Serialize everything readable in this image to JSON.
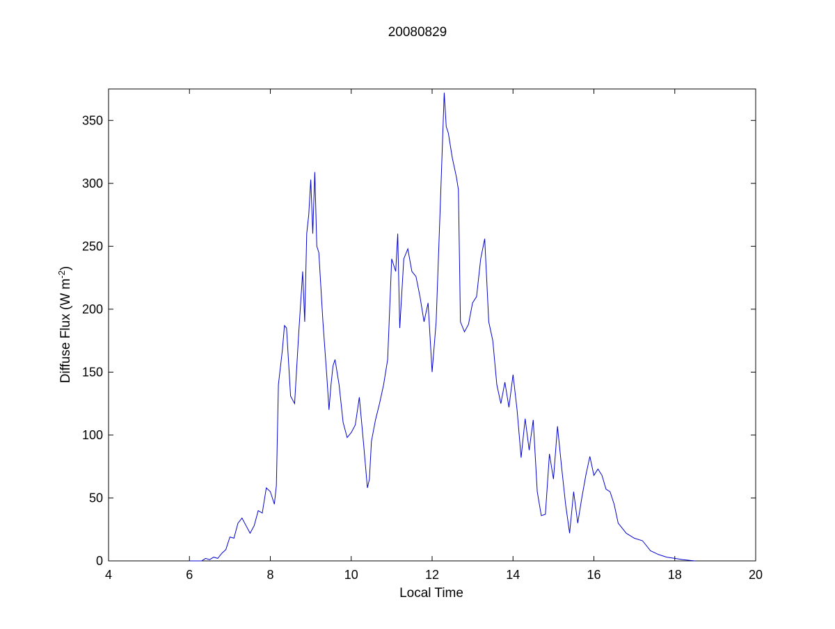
{
  "chart_data": {
    "type": "line",
    "title": "20080829",
    "xlabel": "Local Time",
    "ylabel": {
      "prefix": "Diffuse Flux (W m",
      "superscript": "-2",
      "suffix": ")"
    },
    "xlim": [
      4,
      20
    ],
    "ylim": [
      0,
      375
    ],
    "xticks": [
      4,
      6,
      8,
      10,
      12,
      14,
      16,
      18,
      20
    ],
    "yticks": [
      0,
      50,
      100,
      150,
      200,
      250,
      300,
      350
    ],
    "grid": false,
    "legend": "none",
    "line_color": "#0000cc",
    "series": [
      {
        "x": [
          6.0,
          6.3,
          6.4,
          6.5,
          6.6,
          6.7,
          6.8,
          6.9,
          7.0,
          7.1,
          7.2,
          7.3,
          7.4,
          7.5,
          7.6,
          7.7,
          7.8,
          7.9,
          8.0,
          8.1,
          8.15,
          8.2,
          8.3,
          8.35,
          8.4,
          8.5,
          8.6,
          8.7,
          8.8,
          8.85,
          8.9,
          8.95,
          9.0,
          9.05,
          9.1,
          9.15,
          9.2,
          9.3,
          9.4,
          9.45,
          9.5,
          9.55,
          9.6,
          9.7,
          9.8,
          9.9,
          10.0,
          10.1,
          10.2,
          10.3,
          10.4,
          10.45,
          10.5,
          10.6,
          10.7,
          10.8,
          10.9,
          11.0,
          11.05,
          11.1,
          11.15,
          11.2,
          11.3,
          11.4,
          11.5,
          11.6,
          11.7,
          11.8,
          11.9,
          12.0,
          12.1,
          12.2,
          12.3,
          12.35,
          12.4,
          12.5,
          12.6,
          12.65,
          12.7,
          12.8,
          12.9,
          13.0,
          13.1,
          13.2,
          13.3,
          13.4,
          13.5,
          13.6,
          13.7,
          13.8,
          13.9,
          14.0,
          14.1,
          14.2,
          14.3,
          14.4,
          14.5,
          14.6,
          14.7,
          14.8,
          14.9,
          15.0,
          15.1,
          15.2,
          15.3,
          15.4,
          15.5,
          15.6,
          15.7,
          15.8,
          15.9,
          16.0,
          16.1,
          16.2,
          16.3,
          16.4,
          16.5,
          16.6,
          16.8,
          17.0,
          17.2,
          17.4,
          17.6,
          17.8,
          18.0,
          18.2,
          18.5
        ],
        "y": [
          0,
          0,
          2,
          1,
          3,
          2,
          6,
          9,
          19,
          18,
          30,
          34,
          28,
          22,
          28,
          40,
          38,
          58,
          55,
          45,
          60,
          140,
          168,
          187,
          185,
          131,
          125,
          180,
          230,
          190,
          260,
          275,
          303,
          260,
          309,
          250,
          245,
          190,
          145,
          120,
          140,
          155,
          160,
          140,
          110,
          98,
          102,
          108,
          130,
          95,
          58,
          65,
          95,
          112,
          125,
          140,
          160,
          240,
          235,
          230,
          260,
          185,
          240,
          248,
          230,
          226,
          210,
          190,
          205,
          150,
          190,
          280,
          372,
          345,
          340,
          320,
          305,
          295,
          190,
          182,
          188,
          205,
          210,
          240,
          256,
          190,
          175,
          140,
          125,
          142,
          122,
          148,
          120,
          82,
          113,
          88,
          112,
          55,
          36,
          37,
          85,
          65,
          107,
          75,
          45,
          22,
          55,
          30,
          50,
          68,
          83,
          68,
          73,
          68,
          57,
          55,
          45,
          30,
          22,
          18,
          16,
          8,
          5,
          3,
          2,
          1,
          0
        ]
      }
    ]
  }
}
